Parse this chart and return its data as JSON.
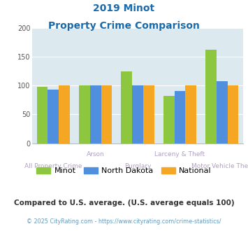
{
  "title_line1": "2019 Minot",
  "title_line2": "Property Crime Comparison",
  "categories": [
    "All Property Crime",
    "Arson",
    "Burglary",
    "Larceny & Theft",
    "Motor Vehicle Theft"
  ],
  "minot": [
    98,
    100,
    124,
    82,
    162
  ],
  "north_dakota": [
    93,
    100,
    100,
    90,
    107
  ],
  "national": [
    100,
    100,
    100,
    100,
    100
  ],
  "color_minot": "#8dc63f",
  "color_nd": "#4f8fde",
  "color_nat": "#f5a623",
  "ylim": [
    0,
    200
  ],
  "yticks": [
    0,
    50,
    100,
    150,
    200
  ],
  "plot_bg": "#dce9ef",
  "title_color": "#1a6aab",
  "note_color": "#333333",
  "footer_color": "#6699bb",
  "xlabel_color": "#b0a0c0",
  "note": "Compared to U.S. average. (U.S. average equals 100)",
  "footer": "© 2025 CityRating.com - https://www.cityrating.com/crime-statistics/"
}
